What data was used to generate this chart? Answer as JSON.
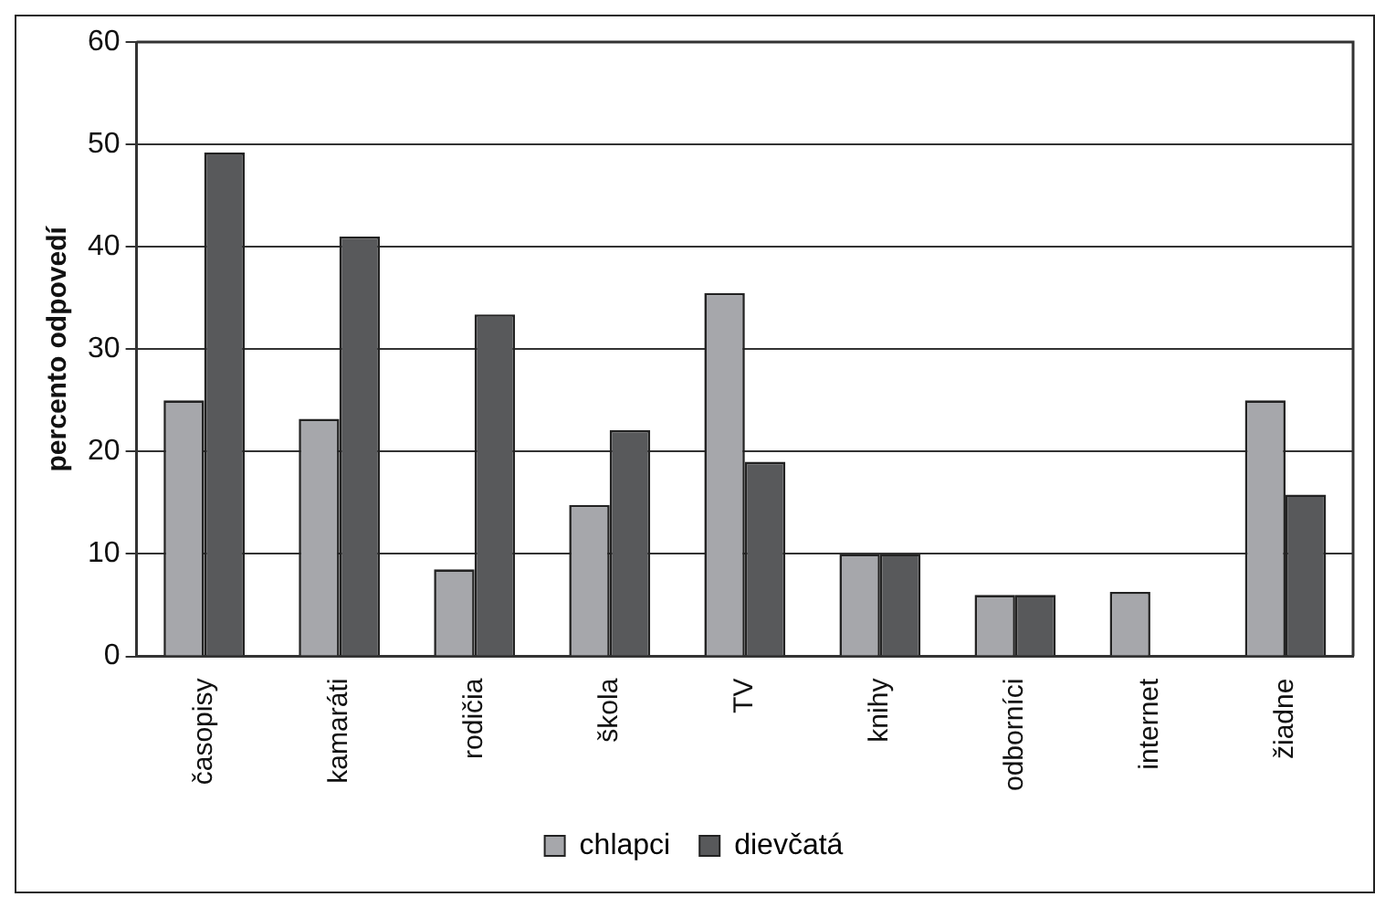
{
  "chart_data": {
    "type": "bar",
    "ylabel": "percento odpovedí",
    "categories": [
      "časopisy",
      "kamaráti",
      "rodičia",
      "škola",
      "TV",
      "knihy",
      "odborníci",
      "internet",
      "žiadne"
    ],
    "series": [
      {
        "name": "chlapci",
        "color": "#a6a7ab",
        "values": [
          25,
          23.2,
          8.5,
          14.8,
          35.5,
          10,
          6,
          6.3,
          25
        ]
      },
      {
        "name": "dievčatá",
        "color": "#58595b",
        "values": [
          49.2,
          41,
          33.4,
          22.1,
          19,
          10,
          6,
          0,
          15.8
        ]
      }
    ],
    "ylim": [
      0,
      60
    ],
    "yticks": [
      0,
      10,
      20,
      30,
      40,
      50,
      60
    ],
    "grid": "y",
    "legend": "bottom"
  }
}
